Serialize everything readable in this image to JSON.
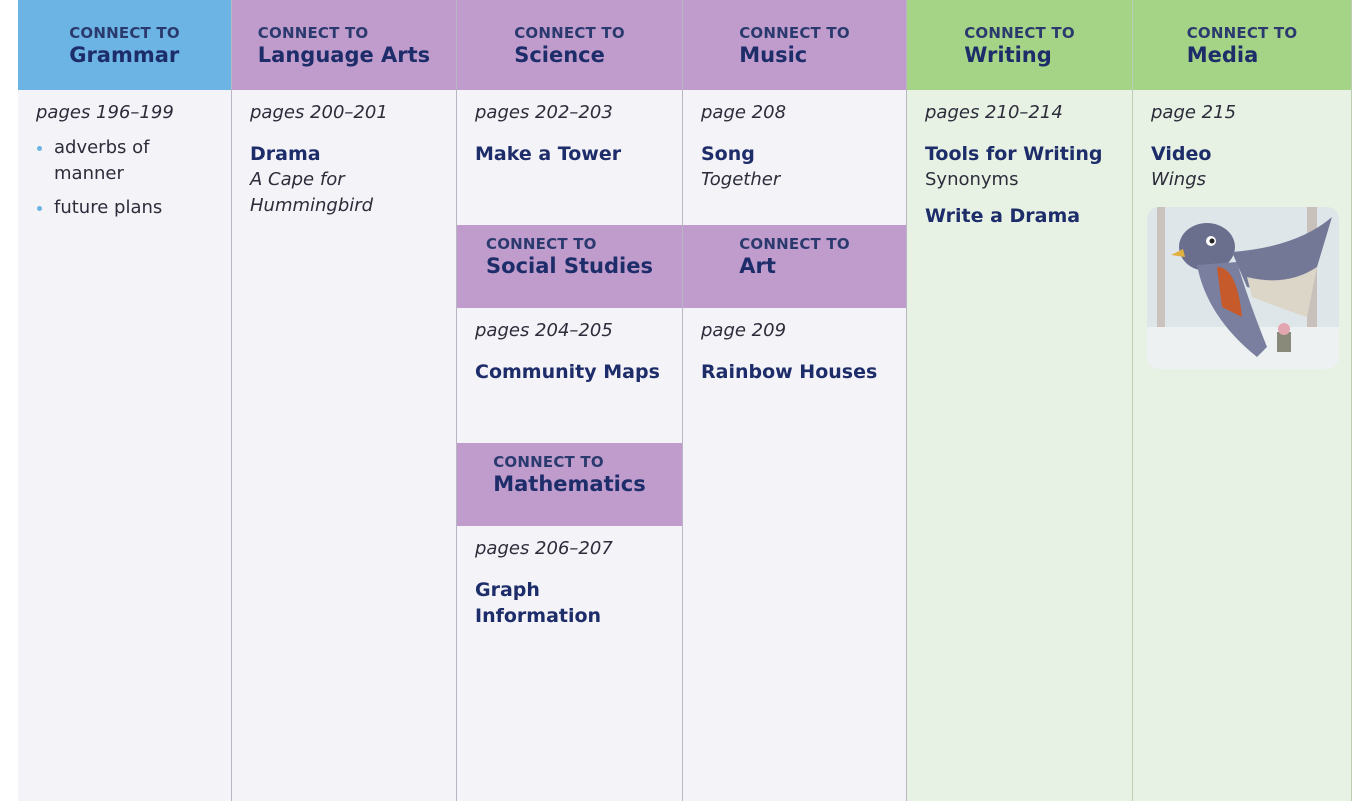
{
  "columns": [
    {
      "blocks": [
        {
          "connect": "CONNECT TO",
          "subject": "Grammar",
          "pages": "pages 196–199",
          "bullets": [
            "adverbs of manner",
            "future plans"
          ]
        }
      ]
    },
    {
      "blocks": [
        {
          "connect": "CONNECT TO",
          "subject": "Language Arts",
          "pages": "pages 200–201",
          "heading": "Drama",
          "italic": "A Cape for Hummingbird"
        }
      ]
    },
    {
      "blocks": [
        {
          "connect": "CONNECT TO",
          "subject": "Science",
          "pages": "pages 202–203",
          "heading": "Make a Tower"
        },
        {
          "connect": "CONNECT TO",
          "subject": "Social Studies",
          "pages": "pages 204–205",
          "heading": "Community Maps"
        },
        {
          "connect": "CONNECT TO",
          "subject": "Mathematics",
          "pages": "pages 206–207",
          "heading": "Graph Information"
        }
      ]
    },
    {
      "blocks": [
        {
          "connect": "CONNECT TO",
          "subject": "Music",
          "pages": "page 208",
          "heading": "Song",
          "italic": "Together"
        },
        {
          "connect": "CONNECT TO",
          "subject": "Art",
          "pages": "page 209",
          "heading": "Rainbow Houses"
        }
      ]
    },
    {
      "blocks": [
        {
          "connect": "CONNECT TO",
          "subject": "Writing",
          "pages": "pages 210–214",
          "heading": "Tools for Writing",
          "plain": "Synonyms",
          "heading2": "Write a Drama"
        }
      ]
    },
    {
      "blocks": [
        {
          "connect": "CONNECT TO",
          "subject": "Media",
          "pages": "page 215",
          "heading": "Video",
          "italic": "Wings"
        }
      ]
    }
  ]
}
